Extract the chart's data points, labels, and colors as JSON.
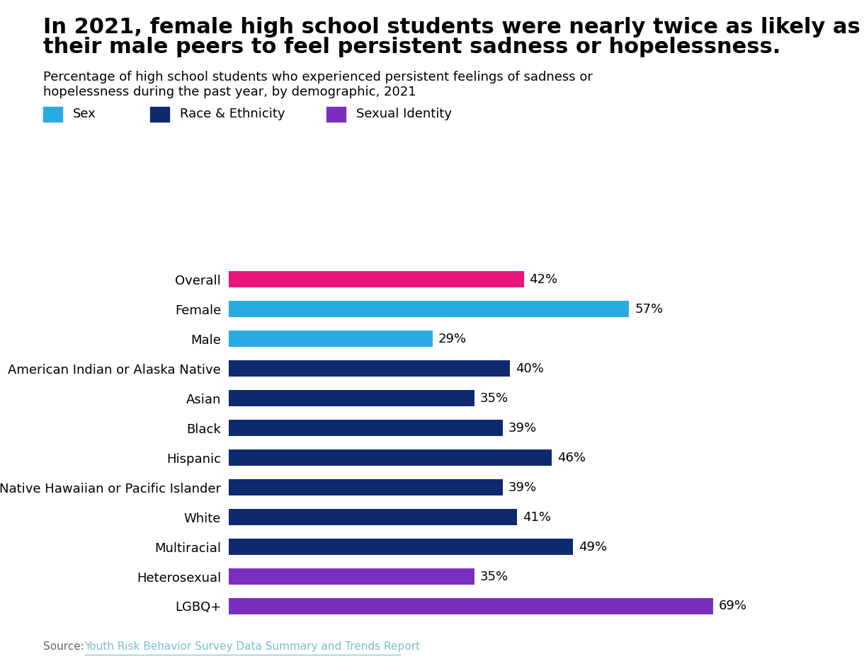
{
  "title_line1": "In 2021, female high school students were nearly twice as likely as",
  "title_line2": "their male peers to feel persistent sadness or hopelessness.",
  "subtitle_line1": "Percentage of high school students who experienced persistent feelings of sadness or",
  "subtitle_line2": "hopelessness during the past year, by demographic, 2021",
  "source_label": "Source: ",
  "source_link": "Youth Risk Behavior Survey Data Summary and Trends Report",
  "categories": [
    "Overall",
    "Female",
    "Male",
    "American Indian or Alaska Native",
    "Asian",
    "Black",
    "Hispanic",
    "Native Hawaiian or Pacific Islander",
    "White",
    "Multiracial",
    "Heterosexual",
    "LGBQ+"
  ],
  "values": [
    42,
    57,
    29,
    40,
    35,
    39,
    46,
    39,
    41,
    49,
    35,
    69
  ],
  "colors": [
    "#E8157B",
    "#29ABE2",
    "#29ABE2",
    "#0D2A6E",
    "#0D2A6E",
    "#0D2A6E",
    "#0D2A6E",
    "#0D2A6E",
    "#0D2A6E",
    "#0D2A6E",
    "#7B2FBE",
    "#7B2FBE"
  ],
  "legend": [
    {
      "label": "Sex",
      "color": "#29ABE2"
    },
    {
      "label": "Race & Ethnicity",
      "color": "#0D2A6E"
    },
    {
      "label": "Sexual Identity",
      "color": "#7B2FBE"
    }
  ],
  "xlim": [
    0,
    80
  ],
  "bar_height": 0.55,
  "background_color": "#FFFFFF",
  "title_fontsize": 22,
  "subtitle_fontsize": 13,
  "label_fontsize": 13,
  "value_fontsize": 13,
  "legend_fontsize": 13,
  "source_fontsize": 11,
  "source_color": "#7ABFCF",
  "source_label_color": "#666666",
  "text_color": "#000000"
}
